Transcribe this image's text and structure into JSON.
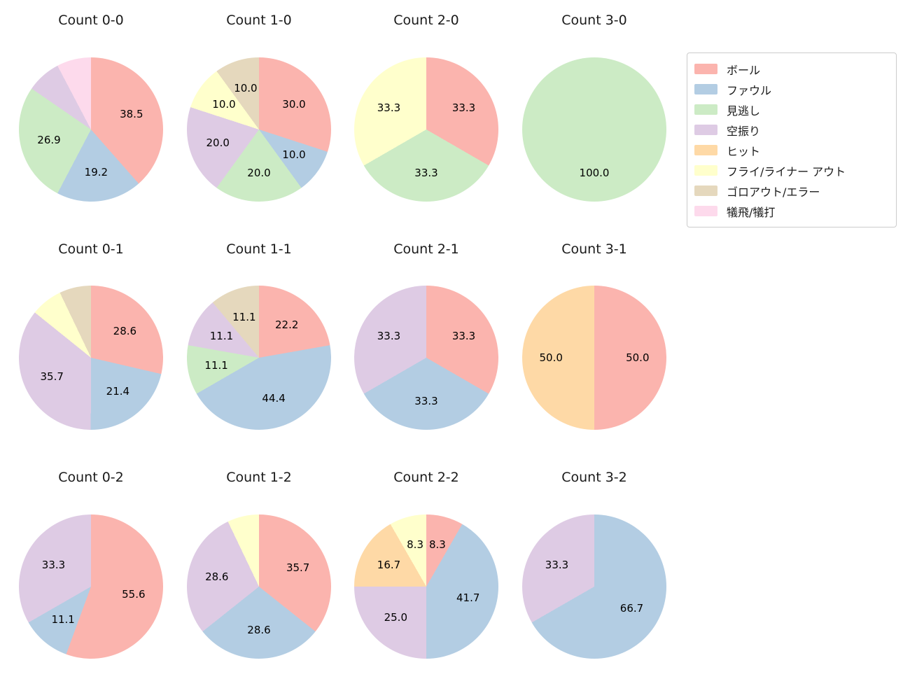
{
  "palette": {
    "ボール": "#fbb4ae",
    "ファウル": "#b3cde3",
    "見逃し": "#ccebc5",
    "空振り": "#decbe4",
    "ヒット": "#fed9a6",
    "フライ/ライナー アウト": "#ffffcc",
    "ゴロアウト/エラー": "#e5d8bd",
    "犠飛/犠打": "#fddaec"
  },
  "legend": {
    "position": "upper right",
    "items": [
      {
        "label": "ボール"
      },
      {
        "label": "ファウル"
      },
      {
        "label": "見逃し"
      },
      {
        "label": "空振り"
      },
      {
        "label": "ヒット"
      },
      {
        "label": "フライ/ライナー アウト"
      },
      {
        "label": "ゴロアウト/エラー"
      },
      {
        "label": "犠飛/犠打"
      }
    ]
  },
  "chart_data": [
    {
      "type": "pie",
      "title": "Count 0-0",
      "slices": [
        {
          "category": "ボール",
          "value": 38.5,
          "label": "38.5"
        },
        {
          "category": "ファウル",
          "value": 19.2,
          "label": "19.2"
        },
        {
          "category": "見逃し",
          "value": 26.9,
          "label": "26.9"
        },
        {
          "category": "空振り",
          "value": 7.7,
          "label": ""
        },
        {
          "category": "犠飛/犠打",
          "value": 7.7,
          "label": ""
        }
      ]
    },
    {
      "type": "pie",
      "title": "Count 1-0",
      "slices": [
        {
          "category": "ボール",
          "value": 30.0,
          "label": "30.0"
        },
        {
          "category": "ファウル",
          "value": 10.0,
          "label": "10.0"
        },
        {
          "category": "見逃し",
          "value": 20.0,
          "label": "20.0"
        },
        {
          "category": "空振り",
          "value": 20.0,
          "label": "20.0"
        },
        {
          "category": "フライ/ライナー アウト",
          "value": 10.0,
          "label": "10.0"
        },
        {
          "category": "ゴロアウト/エラー",
          "value": 10.0,
          "label": "10.0"
        }
      ]
    },
    {
      "type": "pie",
      "title": "Count 2-0",
      "slices": [
        {
          "category": "ボール",
          "value": 33.3,
          "label": "33.3"
        },
        {
          "category": "見逃し",
          "value": 33.3,
          "label": "33.3"
        },
        {
          "category": "フライ/ライナー アウト",
          "value": 33.3,
          "label": "33.3"
        }
      ]
    },
    {
      "type": "pie",
      "title": "Count 3-0",
      "slices": [
        {
          "category": "見逃し",
          "value": 100.0,
          "label": "100.0"
        }
      ]
    },
    {
      "type": "pie",
      "title": "Count 0-1",
      "slices": [
        {
          "category": "ボール",
          "value": 28.6,
          "label": "28.6"
        },
        {
          "category": "ファウル",
          "value": 21.4,
          "label": "21.4"
        },
        {
          "category": "空振り",
          "value": 35.7,
          "label": "35.7"
        },
        {
          "category": "フライ/ライナー アウト",
          "value": 7.1,
          "label": ""
        },
        {
          "category": "ゴロアウト/エラー",
          "value": 7.1,
          "label": ""
        }
      ]
    },
    {
      "type": "pie",
      "title": "Count 1-1",
      "slices": [
        {
          "category": "ボール",
          "value": 22.2,
          "label": "22.2"
        },
        {
          "category": "ファウル",
          "value": 44.4,
          "label": "44.4"
        },
        {
          "category": "見逃し",
          "value": 11.1,
          "label": "11.1"
        },
        {
          "category": "空振り",
          "value": 11.1,
          "label": "11.1"
        },
        {
          "category": "ゴロアウト/エラー",
          "value": 11.1,
          "label": "11.1"
        }
      ]
    },
    {
      "type": "pie",
      "title": "Count 2-1",
      "slices": [
        {
          "category": "ボール",
          "value": 33.3,
          "label": "33.3"
        },
        {
          "category": "ファウル",
          "value": 33.3,
          "label": "33.3"
        },
        {
          "category": "空振り",
          "value": 33.3,
          "label": "33.3"
        }
      ]
    },
    {
      "type": "pie",
      "title": "Count 3-1",
      "slices": [
        {
          "category": "ボール",
          "value": 50.0,
          "label": "50.0"
        },
        {
          "category": "ヒット",
          "value": 50.0,
          "label": "50.0"
        }
      ]
    },
    {
      "type": "pie",
      "title": "Count 0-2",
      "slices": [
        {
          "category": "ボール",
          "value": 55.6,
          "label": "55.6"
        },
        {
          "category": "ファウル",
          "value": 11.1,
          "label": "11.1"
        },
        {
          "category": "空振り",
          "value": 33.3,
          "label": "33.3"
        }
      ]
    },
    {
      "type": "pie",
      "title": "Count 1-2",
      "slices": [
        {
          "category": "ボール",
          "value": 35.7,
          "label": "35.7"
        },
        {
          "category": "ファウル",
          "value": 28.6,
          "label": "28.6"
        },
        {
          "category": "空振り",
          "value": 28.6,
          "label": "28.6"
        },
        {
          "category": "フライ/ライナー アウト",
          "value": 7.1,
          "label": ""
        }
      ]
    },
    {
      "type": "pie",
      "title": "Count 2-2",
      "slices": [
        {
          "category": "ボール",
          "value": 8.3,
          "label": "8.3"
        },
        {
          "category": "ファウル",
          "value": 41.7,
          "label": "41.7"
        },
        {
          "category": "空振り",
          "value": 25.0,
          "label": "25.0"
        },
        {
          "category": "ヒット",
          "value": 16.7,
          "label": "16.7"
        },
        {
          "category": "フライ/ライナー アウト",
          "value": 8.3,
          "label": "8.3"
        }
      ]
    },
    {
      "type": "pie",
      "title": "Count 3-2",
      "slices": [
        {
          "category": "ファウル",
          "value": 66.7,
          "label": "66.7"
        },
        {
          "category": "空振り",
          "value": 33.3,
          "label": "33.3"
        }
      ]
    }
  ]
}
